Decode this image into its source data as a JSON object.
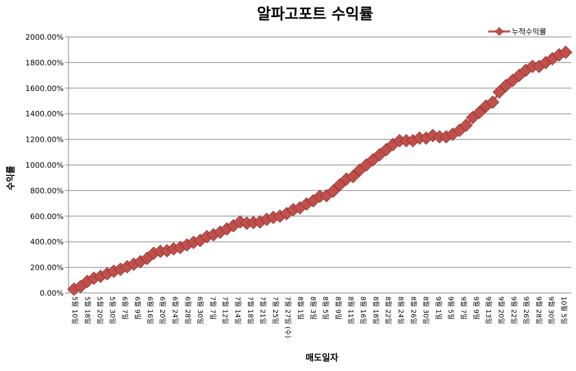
{
  "chart_data": {
    "type": "line",
    "title": "알파고포트 수익률",
    "xlabel": "매도일자",
    "ylabel": "수익률",
    "ylim": [
      0,
      2000
    ],
    "y_tick_format": "percent_2dp",
    "y_ticks": [
      "0.00%",
      "200.00%",
      "400.00%",
      "600.00%",
      "800.00%",
      "1000.00%",
      "1200.00%",
      "1400.00%",
      "1600.00%",
      "1800.00%",
      "2000.00%"
    ],
    "grid": "horizontal",
    "legend_position": "top-right",
    "x_tick_labels": [
      "5월 10일",
      "5월 18일",
      "5월 20일",
      "5월 30일",
      "6월 7일",
      "6월 9일",
      "6월 16일",
      "6월 20일",
      "6월 24일",
      "6월 28일",
      "6월 30일",
      "7월 7일",
      "7월 12일",
      "7월 14일",
      "7월 18일",
      "7월 21일",
      "7월 25일",
      "7월 27일 (수)",
      "8월 1일",
      "8월 3일",
      "8월 5일",
      "8월 9일",
      "8월 11일",
      "8월 16일",
      "8월 18일",
      "8월 22일",
      "8월 24일",
      "8월 26일",
      "8월 30일",
      "9월 1일",
      "9월 5일",
      "9월 7일",
      "9월 9일",
      "9월 13일",
      "9월 20일",
      "9월 22일",
      "9월 26일",
      "9월 28일",
      "9월 30일",
      "10월 5일"
    ],
    "series": [
      {
        "name": "누적수익률",
        "color": "#c0504d",
        "marker": "diamond",
        "values": [
          30,
          50,
          90,
          115,
          130,
          150,
          170,
          185,
          205,
          225,
          245,
          270,
          310,
          325,
          330,
          345,
          355,
          375,
          395,
          410,
          440,
          455,
          475,
          500,
          525,
          555,
          545,
          550,
          555,
          575,
          590,
          600,
          620,
          650,
          665,
          695,
          720,
          755,
          760,
          795,
          845,
          890,
          910,
          960,
          1000,
          1040,
          1080,
          1120,
          1160,
          1190,
          1190,
          1190,
          1210,
          1210,
          1230,
          1220,
          1220,
          1240,
          1270,
          1310,
          1370,
          1410,
          1460,
          1490,
          1570,
          1620,
          1660,
          1700,
          1740,
          1770,
          1770,
          1800,
          1830,
          1860,
          1880
        ]
      }
    ]
  }
}
